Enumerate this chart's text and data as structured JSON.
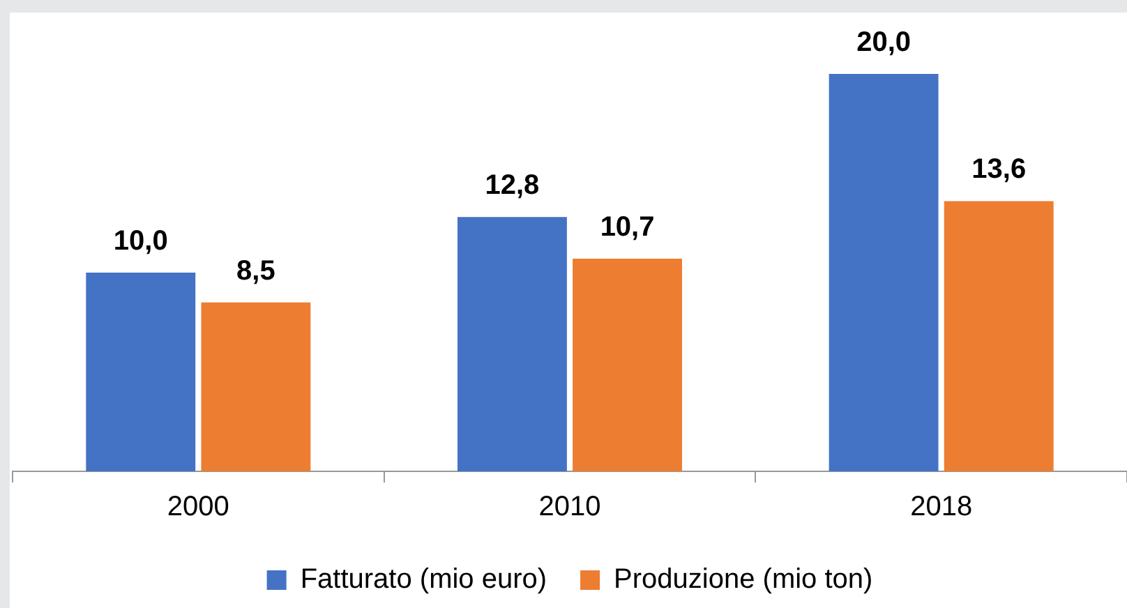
{
  "chart_data": {
    "type": "bar",
    "categories": [
      "2000",
      "2010",
      "2018"
    ],
    "series": [
      {
        "name": "Fatturato (mio euro)",
        "color": "#4472c4",
        "values": [
          10.0,
          12.8,
          20.0
        ],
        "value_labels": [
          "10,0",
          "12,8",
          "20,0"
        ]
      },
      {
        "name": "Produzione (mio ton)",
        "color": "#ed7d31",
        "values": [
          8.5,
          10.7,
          13.6
        ],
        "value_labels": [
          "8,5",
          "10,7",
          "13,6"
        ]
      }
    ],
    "legend": "bottom",
    "grid": false
  }
}
